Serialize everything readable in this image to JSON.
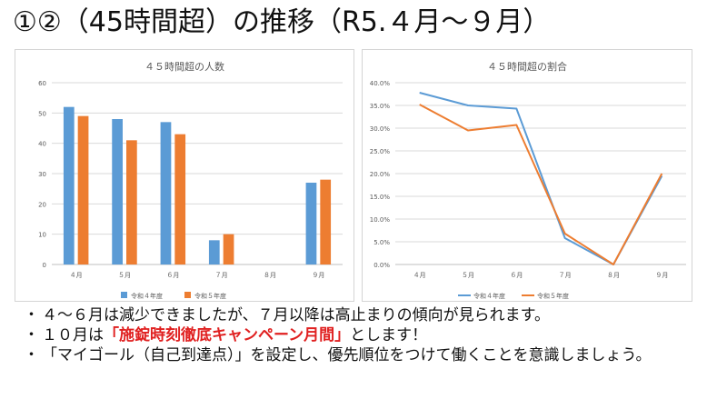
{
  "slide": {
    "title": "①②（45時間超）の推移（R5.４月～９月）"
  },
  "chart_data": [
    {
      "type": "bar",
      "title": "４５時間超の人数",
      "categories": [
        "４月",
        "５月",
        "６月",
        "７月",
        "８月",
        "９月"
      ],
      "series": [
        {
          "name": "令和４年度",
          "color": "#5b9bd5",
          "values": [
            52,
            48,
            47,
            8,
            0,
            27
          ]
        },
        {
          "name": "令和５年度",
          "color": "#ed7d31",
          "values": [
            49,
            41,
            43,
            10,
            0,
            28
          ]
        }
      ],
      "yticks": [
        "0",
        "10",
        "20",
        "30",
        "40",
        "50",
        "60"
      ],
      "ylim": [
        0,
        60
      ],
      "grid": true,
      "legend": "bottom"
    },
    {
      "type": "line",
      "title": "４５時間超の割合",
      "categories": [
        "４月",
        "５月",
        "６月",
        "７月",
        "８月",
        "９月"
      ],
      "series": [
        {
          "name": "令和４年度",
          "color": "#5b9bd5",
          "values": [
            0.378,
            0.35,
            0.343,
            0.058,
            0.0,
            0.195
          ]
        },
        {
          "name": "令和５年度",
          "color": "#ed7d31",
          "values": [
            0.352,
            0.295,
            0.307,
            0.068,
            0.0,
            0.2
          ]
        }
      ],
      "yticks": [
        "0.0%",
        "5.0%",
        "10.0%",
        "15.0%",
        "20.0%",
        "25.0%",
        "30.0%",
        "35.0%",
        "40.0%"
      ],
      "ylim": [
        0,
        0.4
      ],
      "grid": true,
      "legend": "bottom"
    }
  ],
  "bullets": [
    {
      "pre": "４～６月は減少できましたが、７月以降は高止まりの傾向が見られます。",
      "highlight": "",
      "post": ""
    },
    {
      "pre": "１０月は",
      "highlight": "「施錠時刻徹底キャンペーン月間」",
      "post": "とします！"
    },
    {
      "pre": "「マイゴール（自己到達点）」を設定し、優先順位をつけて働くことを意識しましょう。",
      "highlight": "",
      "post": ""
    }
  ],
  "bullet_symbol": "・"
}
